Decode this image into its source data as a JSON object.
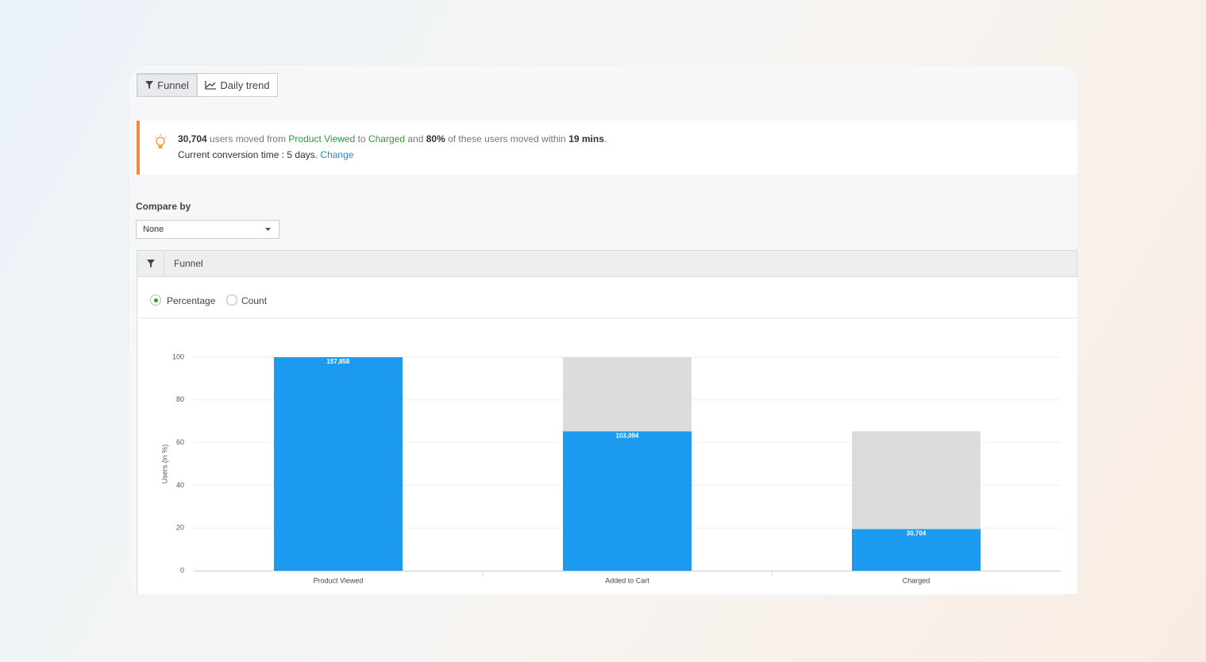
{
  "tabs": [
    "Funnel",
    "Daily trend"
  ],
  "insight": {
    "count": "30,704",
    "t1": "users moved from",
    "from": "Product Viewed",
    "t2": "to",
    "to": "Charged",
    "t3": "and",
    "pct": "80%",
    "t4": "of these users moved within",
    "time": "19 mins",
    "end": ".",
    "line2": "Current conversion time : 5 days.",
    "link": "Change"
  },
  "compare": {
    "label": "Compare by",
    "value": "None"
  },
  "panel": {
    "title": "Funnel",
    "options": [
      "Percentage",
      "Count"
    ]
  },
  "chart_data": {
    "type": "bar",
    "stacked": true,
    "ylabel": "Users (in %)",
    "categories": [
      "Product Viewed",
      "Added to Cart",
      "Charged"
    ],
    "series": [
      {
        "color": "#1b9af0",
        "values": [
          100,
          65.3,
          19.5
        ],
        "value_labels": [
          "157,858",
          "103,094",
          "30,704"
        ]
      },
      {
        "color": "#dcdcdc",
        "values": [
          null,
          34.7,
          45.8
        ]
      }
    ],
    "ylim": [
      0,
      100
    ],
    "yticks": [
      0,
      20,
      40,
      60,
      80,
      100
    ],
    "grid": true
  }
}
